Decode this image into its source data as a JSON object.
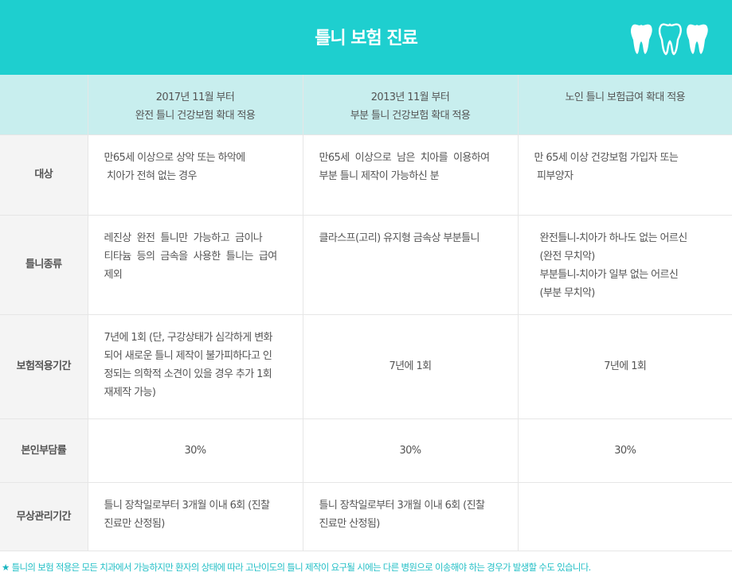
{
  "header": {
    "title": "틀니 보험 진료"
  },
  "columns": [
    {
      "line1": "2017년 11월 부터",
      "line2": "완전 틀니 건강보험 확대 적용"
    },
    {
      "line1": "2013년 11월 부터",
      "line2": "부분 틀니 건강보험 확대 적용"
    },
    {
      "line1": "노인 틀니 보험급여 확대 적용",
      "line2": ""
    }
  ],
  "rows": {
    "target": {
      "label": "대상",
      "c1": [
        "만65세 이상으로 상악 또는 하악에",
        " 치아가 전혀 없는 경우"
      ],
      "c2": [
        "만65세  이상으로  남은  치아를  이용하여",
        "부분 틀니 제작이 가능하신 분"
      ],
      "c3": [
        "만 65세 이상 건강보험 가입자 또는",
        " 피부양자"
      ]
    },
    "type": {
      "label": "틀니종류",
      "c1": [
        "레진상  완전  틀니만  가능하고  금이나",
        "티타늄  등의  금속을  사용한  틀니는  급여",
        "제외"
      ],
      "c2": [
        "클라스프(고리) 유지형 금속상 부분틀니"
      ],
      "c3": [
        "완전틀니-치아가 하나도 없는 어르신",
        "(완전 무치악)",
        "부분틀니-치아가 일부 없는 어르신",
        "(부분 무치악)"
      ]
    },
    "period": {
      "label": "보험적용기간",
      "c1": [
        "7년에 1회 (단, 구강상태가 심각하게 변화",
        "되어 새로운 틀니 제작이 불가피하다고 인",
        "정되는 의학적 소견이 있을 경우 추가 1회",
        "재제작 가능)"
      ],
      "c2": "7년에 1회",
      "c3": "7년에 1회"
    },
    "copay": {
      "label": "본인부담률",
      "c1": "30%",
      "c2": "30%",
      "c3": "30%"
    },
    "free": {
      "label": "무상관리기간",
      "c1": [
        "틀니 장착일로부터 3개월 이내 6회 (진찰",
        "진료만 산정됨)"
      ],
      "c2": [
        "틀니 장착일로부터 3개월 이내 6회 (진찰",
        "진료만 산정됨)"
      ],
      "c3": ""
    }
  },
  "footnote": {
    "star": "★",
    "text": "틀니의 보험 적용은 모든 치과에서 가능하지만 환자의 상태에 따라 고난이도의 틀니 제작이 요구될 시에는 다른 병원으로 이송해야 하는 경우가 발생할 수도 있습니다."
  },
  "colors": {
    "header_bg": "#1ecfcf",
    "column_header_bg": "#c8eeee",
    "row_label_bg": "#f4f4f4",
    "footnote": "#22bfc6"
  },
  "icons": [
    "tooth-icon",
    "tooth-icon",
    "tooth-icon"
  ]
}
